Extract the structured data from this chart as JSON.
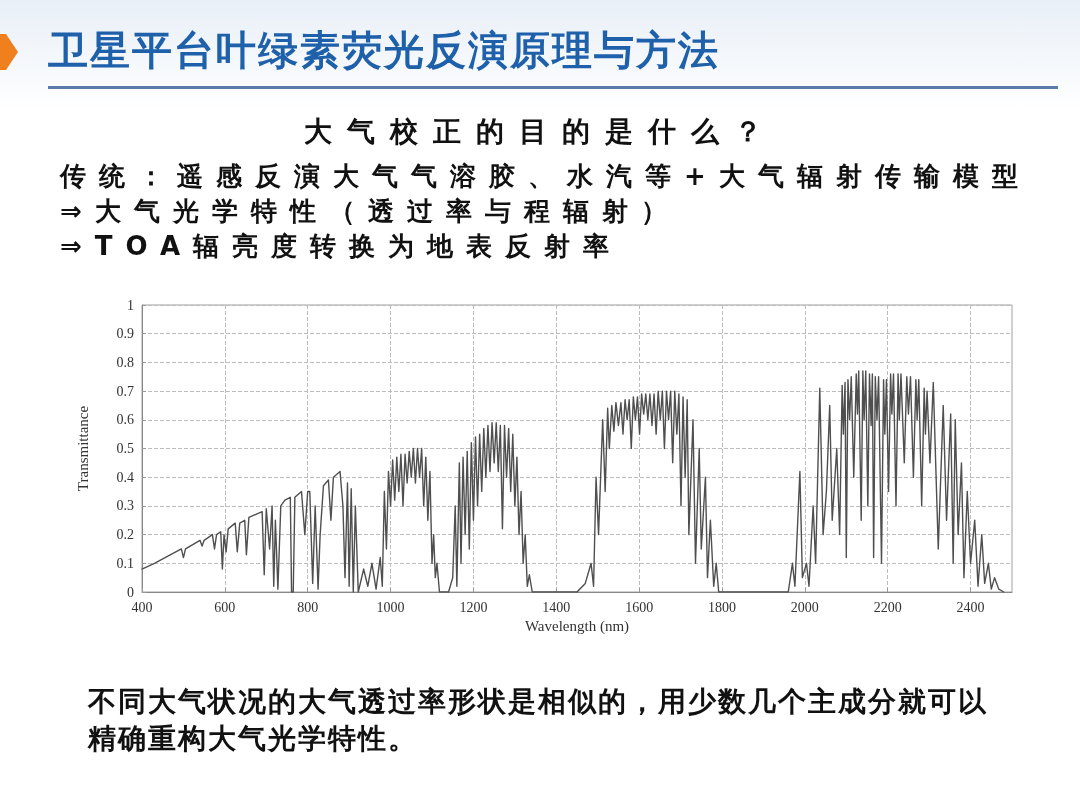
{
  "chart_data": {
    "type": "line",
    "title": "卫星平台叶绿素荧光反演原理与方法",
    "subtitle": "大气校正的目的是什么？",
    "annotations": [
      "传统：遥感反演大气气溶胶、水汽等+大气辐射传输模型",
      "⇒大气光学特性（透过率与程辐射）",
      "⇒TOA辐亮度转换为地表反射率",
      "不同大气状况的大气透过率形状是相似的，用少数几个主成分就可以精确重构大气光学特性。"
    ],
    "xlabel": "Wavelength (nm)",
    "ylabel": "Transmittance",
    "x": [
      400,
      430,
      495,
      500,
      505,
      540,
      545,
      550,
      570,
      575,
      580,
      590,
      594,
      598,
      603,
      608,
      625,
      630,
      636,
      648,
      652,
      658,
      690,
      695,
      700,
      708,
      714,
      718,
      722,
      728,
      735,
      745,
      758,
      761,
      765,
      769,
      785,
      793,
      800,
      805,
      812,
      818,
      825,
      830,
      838,
      850,
      856,
      862,
      878,
      885,
      890,
      896,
      900,
      905,
      910,
      915,
      922,
      935,
      945,
      955,
      965,
      975,
      980,
      985,
      990,
      995,
      1000,
      1005,
      1010,
      1015,
      1020,
      1025,
      1030,
      1035,
      1040,
      1045,
      1050,
      1055,
      1060,
      1065,
      1070,
      1075,
      1080,
      1085,
      1090,
      1095,
      1100,
      1104,
      1108,
      1112,
      1118,
      1140,
      1150,
      1156,
      1160,
      1166,
      1170,
      1175,
      1180,
      1185,
      1190,
      1195,
      1200,
      1205,
      1210,
      1215,
      1220,
      1225,
      1230,
      1235,
      1240,
      1245,
      1250,
      1255,
      1260,
      1265,
      1270,
      1275,
      1280,
      1285,
      1290,
      1295,
      1300,
      1305,
      1310,
      1315,
      1320,
      1325,
      1330,
      1335,
      1342,
      1450,
      1470,
      1484,
      1490,
      1496,
      1502,
      1512,
      1518,
      1524,
      1528,
      1534,
      1539,
      1544,
      1550,
      1556,
      1561,
      1566,
      1571,
      1576,
      1581,
      1586,
      1591,
      1596,
      1601,
      1606,
      1611,
      1616,
      1621,
      1626,
      1631,
      1636,
      1641,
      1646,
      1651,
      1656,
      1661,
      1666,
      1671,
      1676,
      1681,
      1686,
      1691,
      1696,
      1701,
      1706,
      1711,
      1716,
      1720,
      1730,
      1736,
      1745,
      1750,
      1760,
      1765,
      1772,
      1780,
      1786,
      1792,
      1960,
      1970,
      1976,
      1988,
      1994,
      2004,
      2010,
      2020,
      2026,
      2036,
      2044,
      2052,
      2060,
      2066,
      2077,
      2084,
      2090,
      2093,
      2097,
      2100,
      2104,
      2108,
      2112,
      2118,
      2124,
      2127,
      2130,
      2136,
      2140,
      2143,
      2147,
      2152,
      2156,
      2160,
      2163,
      2166,
      2170,
      2174,
      2178,
      2185,
      2190,
      2193,
      2197,
      2202,
      2207,
      2210,
      2214,
      2220,
      2225,
      2228,
      2232,
      2240,
      2246,
      2250,
      2255,
      2262,
      2268,
      2271,
      2275,
      2282,
      2288,
      2291,
      2295,
      2302,
      2310,
      2322,
      2334,
      2342,
      2352,
      2358,
      2363,
      2370,
      2378,
      2384,
      2392,
      2400,
      2410,
      2418,
      2427,
      2434,
      2443,
      2450,
      2458,
      2468,
      2480
    ],
    "values": [
      0.08,
      0.1,
      0.15,
      0.12,
      0.15,
      0.18,
      0.16,
      0.18,
      0.2,
      0.15,
      0.2,
      0.21,
      0.08,
      0.2,
      0.14,
      0.22,
      0.24,
      0.14,
      0.24,
      0.25,
      0.13,
      0.26,
      0.28,
      0.06,
      0.29,
      0.15,
      0.3,
      0.02,
      0.25,
      0.01,
      0.3,
      0.32,
      0.33,
      0,
      0,
      0.33,
      0.35,
      0.2,
      0.35,
      0.35,
      0.03,
      0.3,
      0.01,
      0.2,
      0.37,
      0.39,
      0.25,
      0.4,
      0.42,
      0.3,
      0.05,
      0.38,
      0.02,
      0.36,
      0,
      0.3,
      0,
      0.08,
      0.02,
      0.1,
      0.01,
      0.12,
      0.02,
      0.35,
      0.15,
      0.42,
      0.3,
      0.46,
      0.32,
      0.47,
      0.35,
      0.48,
      0.3,
      0.48,
      0.38,
      0.49,
      0.4,
      0.5,
      0.38,
      0.5,
      0.4,
      0.5,
      0.3,
      0.47,
      0.25,
      0.42,
      0.1,
      0.2,
      0.05,
      0.1,
      0,
      0,
      0.05,
      0.3,
      0.02,
      0.45,
      0.1,
      0.47,
      0.2,
      0.49,
      0.15,
      0.52,
      0.25,
      0.54,
      0.3,
      0.55,
      0.35,
      0.57,
      0.4,
      0.58,
      0.42,
      0.59,
      0.45,
      0.59,
      0.42,
      0.58,
      0.22,
      0.58,
      0.4,
      0.57,
      0.35,
      0.55,
      0.3,
      0.47,
      0.2,
      0.35,
      0.1,
      0.2,
      0.02,
      0.06,
      0,
      0,
      0.03,
      0.1,
      0.02,
      0.4,
      0.2,
      0.6,
      0.35,
      0.64,
      0.5,
      0.65,
      0.56,
      0.66,
      0.58,
      0.66,
      0.55,
      0.67,
      0.6,
      0.67,
      0.5,
      0.68,
      0.6,
      0.68,
      0.55,
      0.69,
      0.62,
      0.69,
      0.6,
      0.69,
      0.58,
      0.69,
      0.55,
      0.7,
      0.6,
      0.7,
      0.5,
      0.7,
      0.6,
      0.7,
      0.45,
      0.7,
      0.55,
      0.69,
      0.3,
      0.68,
      0.4,
      0.67,
      0.2,
      0.6,
      0.1,
      0.5,
      0.15,
      0.4,
      0.05,
      0.25,
      0.02,
      0.1,
      0,
      0,
      0.1,
      0.02,
      0.42,
      0.05,
      0.1,
      0.02,
      0.3,
      0.1,
      0.71,
      0.2,
      0.35,
      0.65,
      0.25,
      0.5,
      0.2,
      0.72,
      0.55,
      0.73,
      0.12,
      0.74,
      0.6,
      0.75,
      0.4,
      0.76,
      0.62,
      0.77,
      0.25,
      0.77,
      0.6,
      0.77,
      0.3,
      0.76,
      0.58,
      0.76,
      0.12,
      0.75,
      0.6,
      0.75,
      0.1,
      0.74,
      0.55,
      0.74,
      0.35,
      0.76,
      0.62,
      0.76,
      0.3,
      0.76,
      0.6,
      0.76,
      0.45,
      0.75,
      0.62,
      0.75,
      0.4,
      0.74,
      0.6,
      0.74,
      0.3,
      0.71,
      0.55,
      0.7,
      0.45,
      0.73,
      0.15,
      0.65,
      0.25,
      0.62,
      0.1,
      0.6,
      0.2,
      0.45,
      0.05,
      0.35,
      0.1,
      0.25,
      0.02,
      0.2,
      0.03,
      0.1,
      0.01,
      0.05,
      0.01,
      0
    ],
    "color": "#4f4f4f",
    "marker": "none",
    "xlim": [
      400,
      2500
    ],
    "ylim": [
      0,
      1
    ],
    "xticks": [
      400,
      600,
      800,
      1000,
      1200,
      1400,
      1600,
      1800,
      2000,
      2200,
      2400
    ],
    "yticks": [
      0,
      0.1,
      0.2,
      0.3,
      0.4,
      0.5,
      0.6,
      0.7,
      0.8,
      0.9,
      1
    ],
    "grid": true
  }
}
